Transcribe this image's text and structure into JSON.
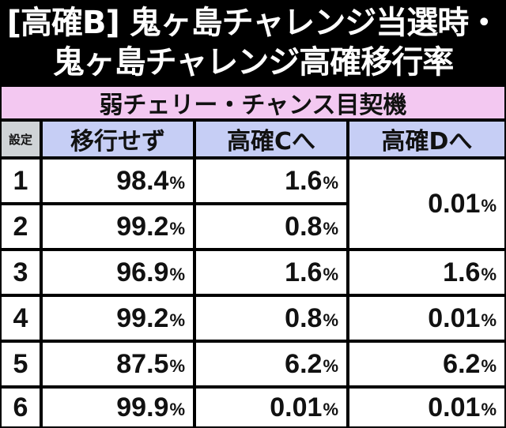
{
  "title": {
    "line1": "[高確B] 鬼ヶ島チャレンジ当選時・",
    "line2": "鬼ヶ島チャレンジ高確移行率"
  },
  "table": {
    "banner": "弱チェリー・チャンス目契機",
    "headers": {
      "setting": "設定",
      "no_move": "移行せず",
      "to_c": "高確Cへ",
      "to_d": "高確Dへ"
    },
    "unit": "%",
    "rows": [
      {
        "setting": "1",
        "no_move": "98.4",
        "to_c": "1.6",
        "to_d": "0.01"
      },
      {
        "setting": "2",
        "no_move": "99.2",
        "to_c": "0.8",
        "to_d": "0.01"
      },
      {
        "setting": "3",
        "no_move": "96.9",
        "to_c": "1.6",
        "to_d": "1.6"
      },
      {
        "setting": "4",
        "no_move": "99.2",
        "to_c": "0.8",
        "to_d": "0.01"
      },
      {
        "setting": "5",
        "no_move": "87.5",
        "to_c": "6.2",
        "to_d": "6.2"
      },
      {
        "setting": "6",
        "no_move": "99.9",
        "to_c": "0.01",
        "to_d": "0.01"
      }
    ]
  }
}
